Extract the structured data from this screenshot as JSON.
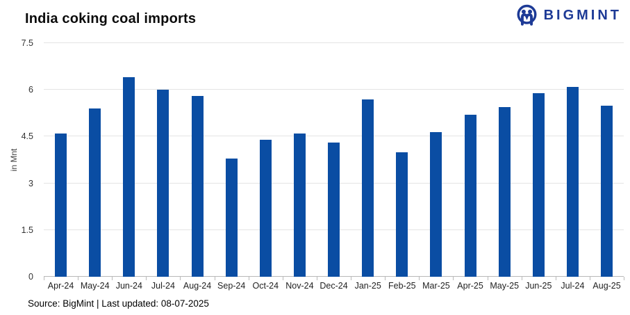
{
  "header": {
    "title": "India coking coal imports",
    "logo_text": "BIGMINT",
    "logo_color": "#1d3a96"
  },
  "chart_data": {
    "type": "bar",
    "title": "India coking coal imports",
    "xlabel": "",
    "ylabel": "in Mnt",
    "ylim": [
      0,
      7.5
    ],
    "yticks": [
      0,
      1.5,
      3,
      4.5,
      6,
      7.5
    ],
    "grid": true,
    "legend": "none",
    "bar_color": "#0a4da3",
    "categories": [
      "Apr-24",
      "May-24",
      "Jun-24",
      "Jul-24",
      "Aug-24",
      "Sep-24",
      "Oct-24",
      "Nov-24",
      "Dec-24",
      "Jan-25",
      "Feb-25",
      "Mar-25",
      "Apr-25",
      "May-25",
      "Jun-25",
      "Jul-24",
      "Aug-25"
    ],
    "values": [
      4.6,
      5.4,
      6.4,
      6.0,
      5.8,
      3.8,
      4.4,
      4.6,
      4.3,
      5.7,
      4.0,
      4.65,
      5.2,
      5.45,
      5.9,
      6.1,
      5.5
    ]
  },
  "footer": {
    "source_text": "Source: BigMint | Last updated: 08-07-2025"
  }
}
